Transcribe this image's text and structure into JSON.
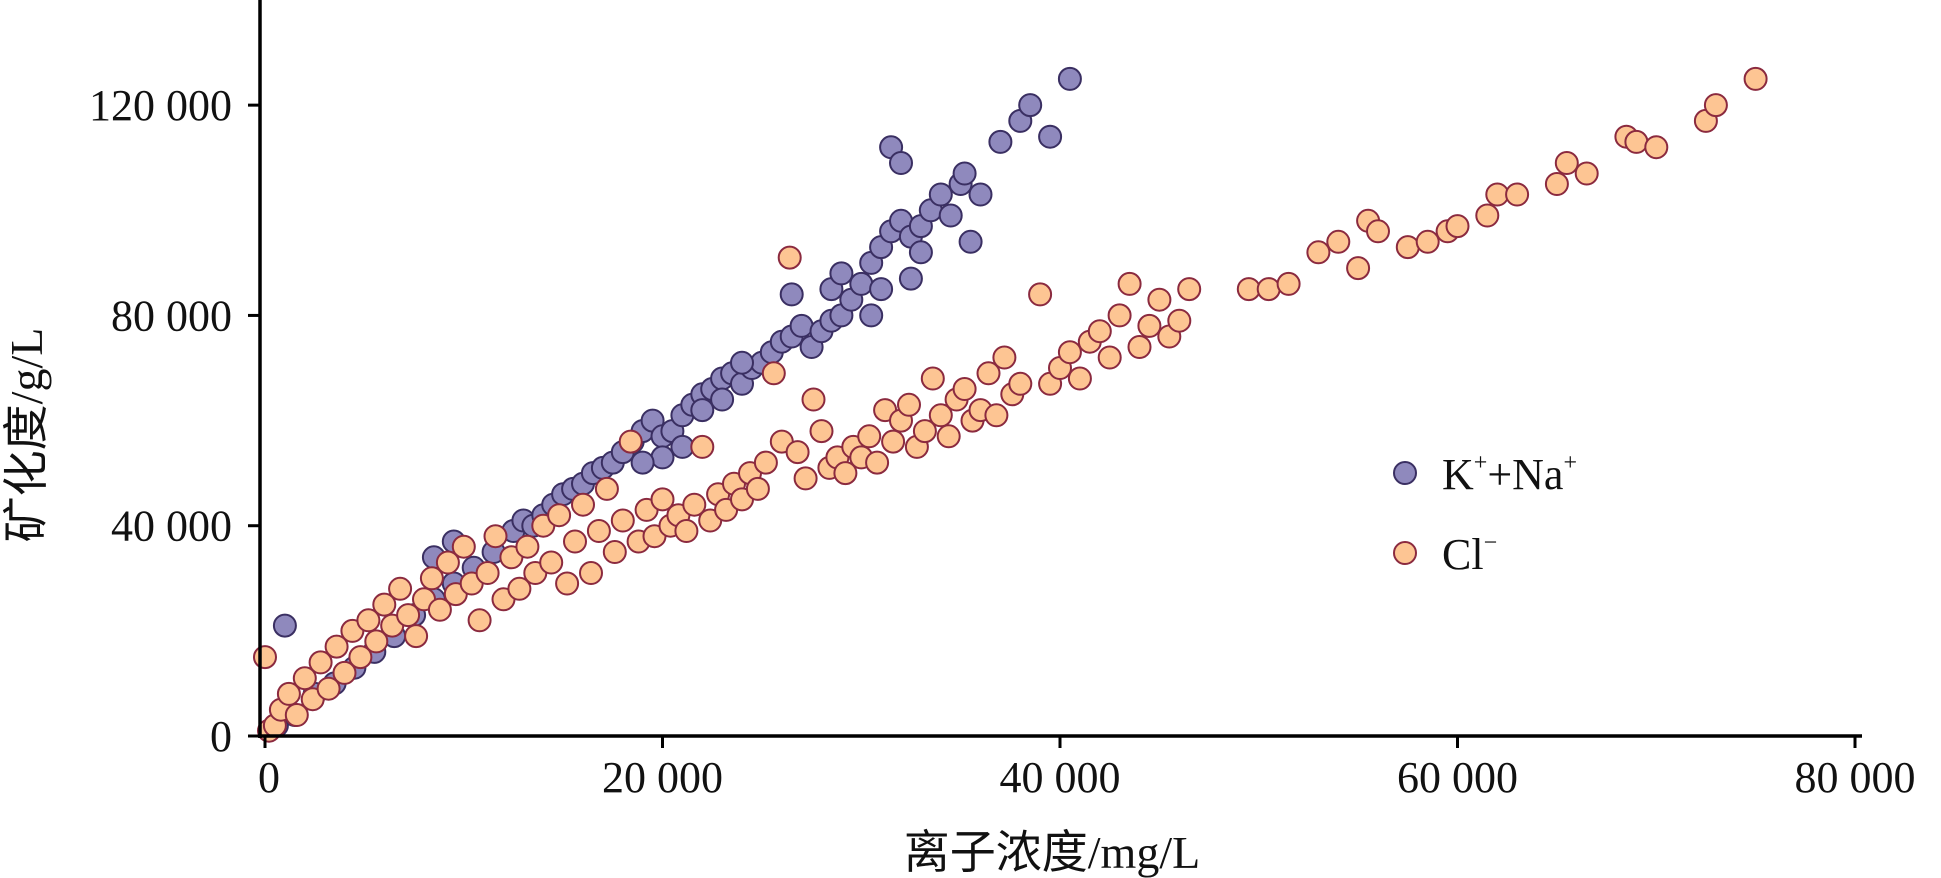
{
  "chart_data": {
    "type": "scatter",
    "title": "",
    "xlabel": "离子浓度/mg/L",
    "ylabel": "矿化度/g/L",
    "xlim": [
      0,
      80000
    ],
    "ylim": [
      0,
      140000
    ],
    "x_ticks": [
      0,
      20000,
      40000,
      60000,
      80000
    ],
    "x_tick_labels": [
      "0",
      "20 000",
      "40 000",
      "60 000",
      "80 000"
    ],
    "y_ticks": [
      0,
      40000,
      80000,
      120000
    ],
    "y_tick_labels": [
      "0",
      "40 000",
      "80 000",
      "120 000"
    ],
    "grid": false,
    "legend": {
      "position": "right",
      "entries": [
        {
          "base": "K",
          "sup1": "+",
          "mid": "+Na",
          "sup2": "+"
        },
        {
          "base": "Cl",
          "sup1": "−",
          "mid": "",
          "sup2": ""
        }
      ]
    },
    "series": [
      {
        "name": "K⁺+Na⁺",
        "color": "#8f89bd",
        "edge": "#3a2f62",
        "points": [
          [
            1000,
            21000
          ],
          [
            600,
            2000
          ],
          [
            1500,
            4000
          ],
          [
            2500,
            8000
          ],
          [
            3500,
            10000
          ],
          [
            4500,
            13000
          ],
          [
            5500,
            16000
          ],
          [
            6500,
            19000
          ],
          [
            7500,
            23000
          ],
          [
            8500,
            26000
          ],
          [
            9500,
            29000
          ],
          [
            10500,
            32000
          ],
          [
            8500,
            34000
          ],
          [
            9500,
            37000
          ],
          [
            11500,
            35000
          ],
          [
            12500,
            39000
          ],
          [
            13000,
            41000
          ],
          [
            13500,
            40000
          ],
          [
            14000,
            42000
          ],
          [
            14500,
            44000
          ],
          [
            15000,
            46000
          ],
          [
            15500,
            47000
          ],
          [
            16000,
            48000
          ],
          [
            16500,
            50000
          ],
          [
            17000,
            51000
          ],
          [
            17500,
            52000
          ],
          [
            18000,
            54000
          ],
          [
            18500,
            56000
          ],
          [
            19000,
            58000
          ],
          [
            19500,
            60000
          ],
          [
            20000,
            57000
          ],
          [
            20500,
            58000
          ],
          [
            21000,
            61000
          ],
          [
            21500,
            63000
          ],
          [
            22000,
            65000
          ],
          [
            22500,
            66000
          ],
          [
            23000,
            68000
          ],
          [
            23500,
            69000
          ],
          [
            24000,
            67000
          ],
          [
            24500,
            70000
          ],
          [
            25000,
            71000
          ],
          [
            25500,
            73000
          ],
          [
            26000,
            75000
          ],
          [
            26500,
            76000
          ],
          [
            27000,
            78000
          ],
          [
            27500,
            74000
          ],
          [
            28000,
            77000
          ],
          [
            28500,
            79000
          ],
          [
            29000,
            80000
          ],
          [
            28500,
            85000
          ],
          [
            29000,
            88000
          ],
          [
            29500,
            83000
          ],
          [
            30000,
            86000
          ],
          [
            30500,
            90000
          ],
          [
            31000,
            93000
          ],
          [
            31500,
            96000
          ],
          [
            32000,
            98000
          ],
          [
            32500,
            95000
          ],
          [
            33000,
            97000
          ],
          [
            33500,
            100000
          ],
          [
            34000,
            103000
          ],
          [
            34500,
            99000
          ],
          [
            35000,
            105000
          ],
          [
            35200,
            107000
          ],
          [
            35500,
            94000
          ],
          [
            36000,
            103000
          ],
          [
            30500,
            80000
          ],
          [
            31000,
            85000
          ],
          [
            32500,
            87000
          ],
          [
            31500,
            112000
          ],
          [
            32000,
            109000
          ],
          [
            33000,
            92000
          ],
          [
            37000,
            113000
          ],
          [
            38000,
            117000
          ],
          [
            38500,
            120000
          ],
          [
            39500,
            114000
          ],
          [
            40500,
            125000
          ],
          [
            26500,
            84000
          ],
          [
            24000,
            71000
          ],
          [
            23000,
            64000
          ],
          [
            22000,
            62000
          ],
          [
            21000,
            55000
          ],
          [
            20000,
            53000
          ],
          [
            19000,
            52000
          ]
        ]
      },
      {
        "name": "Cl⁻",
        "color": "#fdc593",
        "edge": "#8b2a3f",
        "points": [
          [
            0,
            15000
          ],
          [
            200,
            1000
          ],
          [
            500,
            2000
          ],
          [
            800,
            5000
          ],
          [
            1200,
            8000
          ],
          [
            1600,
            4000
          ],
          [
            2000,
            11000
          ],
          [
            2400,
            7000
          ],
          [
            2800,
            14000
          ],
          [
            3200,
            9000
          ],
          [
            3600,
            17000
          ],
          [
            4000,
            12000
          ],
          [
            4400,
            20000
          ],
          [
            4800,
            15000
          ],
          [
            5200,
            22000
          ],
          [
            5600,
            18000
          ],
          [
            6000,
            25000
          ],
          [
            6400,
            21000
          ],
          [
            6800,
            28000
          ],
          [
            7200,
            23000
          ],
          [
            7600,
            19000
          ],
          [
            8000,
            26000
          ],
          [
            8400,
            30000
          ],
          [
            8800,
            24000
          ],
          [
            9200,
            33000
          ],
          [
            9600,
            27000
          ],
          [
            10000,
            36000
          ],
          [
            10400,
            29000
          ],
          [
            10800,
            22000
          ],
          [
            11200,
            31000
          ],
          [
            11600,
            38000
          ],
          [
            12000,
            26000
          ],
          [
            12400,
            34000
          ],
          [
            12800,
            28000
          ],
          [
            13200,
            36000
          ],
          [
            13600,
            31000
          ],
          [
            14000,
            40000
          ],
          [
            14400,
            33000
          ],
          [
            14800,
            42000
          ],
          [
            15200,
            29000
          ],
          [
            15600,
            37000
          ],
          [
            16000,
            44000
          ],
          [
            16400,
            31000
          ],
          [
            16800,
            39000
          ],
          [
            17200,
            47000
          ],
          [
            17600,
            35000
          ],
          [
            18000,
            41000
          ],
          [
            18400,
            56000
          ],
          [
            18800,
            37000
          ],
          [
            19200,
            43000
          ],
          [
            19600,
            38000
          ],
          [
            20000,
            45000
          ],
          [
            20400,
            40000
          ],
          [
            20800,
            42000
          ],
          [
            21200,
            39000
          ],
          [
            21600,
            44000
          ],
          [
            22000,
            55000
          ],
          [
            22400,
            41000
          ],
          [
            22800,
            46000
          ],
          [
            23200,
            43000
          ],
          [
            23600,
            48000
          ],
          [
            24000,
            45000
          ],
          [
            24400,
            50000
          ],
          [
            24800,
            47000
          ],
          [
            25200,
            52000
          ],
          [
            25600,
            69000
          ],
          [
            26000,
            56000
          ],
          [
            26400,
            91000
          ],
          [
            26800,
            54000
          ],
          [
            27200,
            49000
          ],
          [
            27600,
            64000
          ],
          [
            28000,
            58000
          ],
          [
            28400,
            51000
          ],
          [
            28800,
            53000
          ],
          [
            29200,
            50000
          ],
          [
            29600,
            55000
          ],
          [
            30000,
            53000
          ],
          [
            30400,
            57000
          ],
          [
            30800,
            52000
          ],
          [
            31200,
            62000
          ],
          [
            31600,
            56000
          ],
          [
            32000,
            60000
          ],
          [
            32400,
            63000
          ],
          [
            32800,
            55000
          ],
          [
            33200,
            58000
          ],
          [
            33600,
            68000
          ],
          [
            34000,
            61000
          ],
          [
            34400,
            57000
          ],
          [
            34800,
            64000
          ],
          [
            35200,
            66000
          ],
          [
            35600,
            60000
          ],
          [
            36000,
            62000
          ],
          [
            36400,
            69000
          ],
          [
            36800,
            61000
          ],
          [
            37200,
            72000
          ],
          [
            37600,
            65000
          ],
          [
            38000,
            67000
          ],
          [
            39000,
            84000
          ],
          [
            39500,
            67000
          ],
          [
            40000,
            70000
          ],
          [
            40500,
            73000
          ],
          [
            41000,
            68000
          ],
          [
            41500,
            75000
          ],
          [
            42000,
            77000
          ],
          [
            42500,
            72000
          ],
          [
            43000,
            80000
          ],
          [
            43500,
            86000
          ],
          [
            44000,
            74000
          ],
          [
            44500,
            78000
          ],
          [
            45000,
            83000
          ],
          [
            45500,
            76000
          ],
          [
            46000,
            79000
          ],
          [
            46500,
            85000
          ],
          [
            49500,
            85000
          ],
          [
            50500,
            85000
          ],
          [
            51500,
            86000
          ],
          [
            53000,
            92000
          ],
          [
            54000,
            94000
          ],
          [
            55000,
            89000
          ],
          [
            55500,
            98000
          ],
          [
            56000,
            96000
          ],
          [
            57500,
            93000
          ],
          [
            58500,
            94000
          ],
          [
            59500,
            96000
          ],
          [
            60000,
            97000
          ],
          [
            61500,
            99000
          ],
          [
            62000,
            103000
          ],
          [
            63000,
            103000
          ],
          [
            65000,
            105000
          ],
          [
            65500,
            109000
          ],
          [
            66500,
            107000
          ],
          [
            68500,
            114000
          ],
          [
            69000,
            113000
          ],
          [
            70000,
            112000
          ],
          [
            72500,
            117000
          ],
          [
            73000,
            120000
          ],
          [
            75000,
            125000
          ]
        ]
      }
    ]
  }
}
